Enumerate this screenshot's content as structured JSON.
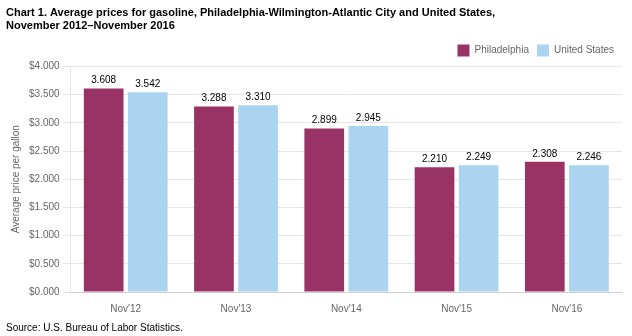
{
  "chart_data": {
    "type": "bar",
    "title": [
      "Chart 1. Average prices for gasoline, Philadelphia-Wilmington-Atlantic City and United States,",
      "November 2012–November 2016"
    ],
    "ylabel": "Average price per gallon",
    "source": "Source: U.S. Bureau of Labor Statistics.",
    "categories": [
      "Nov'12",
      "Nov'13",
      "Nov'14",
      "Nov'15",
      "Nov'16"
    ],
    "series": [
      {
        "name": "Philadelphia",
        "color": "#993366",
        "values": [
          3.608,
          3.288,
          2.899,
          2.21,
          2.308
        ],
        "value_labels": [
          "3.608",
          "3.288",
          "2.899",
          "2.210",
          "2.308"
        ]
      },
      {
        "name": "United States",
        "color": "#aad4f0",
        "values": [
          3.542,
          3.31,
          2.945,
          2.249,
          2.246
        ],
        "value_labels": [
          "3.542",
          "3.310",
          "2.945",
          "2.249",
          "2.246"
        ]
      }
    ],
    "ylim": [
      0,
      4.0
    ],
    "yticks": [
      {
        "value": 0.0,
        "label": "$0.000"
      },
      {
        "value": 0.5,
        "label": "$0.500"
      },
      {
        "value": 1.0,
        "label": "$1.000"
      },
      {
        "value": 1.5,
        "label": "$1.500"
      },
      {
        "value": 2.0,
        "label": "$2.000"
      },
      {
        "value": 2.5,
        "label": "$2.500"
      },
      {
        "value": 3.0,
        "label": "$3.000"
      },
      {
        "value": 3.5,
        "label": "$3.500"
      },
      {
        "value": 4.0,
        "label": "$4.000"
      }
    ],
    "grid": true,
    "legend": "upper right",
    "data_labels": true
  }
}
